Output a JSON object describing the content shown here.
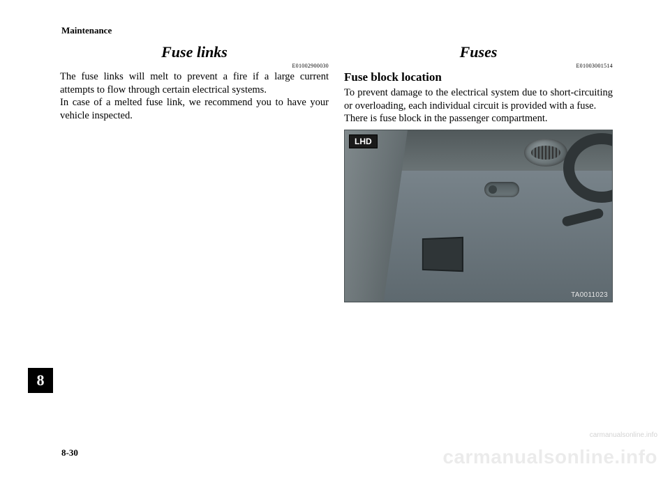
{
  "page": {
    "header": "Maintenance",
    "chapter_tab": "8",
    "page_number": "8-30",
    "watermark_large": "carmanualsonline.info",
    "watermark_small": "carmanualsonline.info"
  },
  "left": {
    "title": "Fuse links",
    "code": "E01002900030",
    "paragraphs": [
      "The fuse links will melt to prevent a fire if a large current attempts to flow through certain electrical systems.",
      "In case of a melted fuse link, we recommend you to have your vehicle inspected."
    ]
  },
  "right": {
    "title": "Fuses",
    "code": "E01003001514",
    "subheading": "Fuse block location",
    "paragraphs": [
      "To prevent damage to the electrical system due to short-circuiting or overloading, each individual circuit is provided with a fuse.",
      "There is fuse block in the passenger compartment."
    ],
    "photo": {
      "label": "LHD",
      "ref": "TA0011023",
      "description": "dashboard-fuse-block-location",
      "colors": {
        "bg_gradient": [
          "#5f6a6d",
          "#7b8689",
          "#8e999c",
          "#6c7679"
        ],
        "label_bg": "#1a1a1a",
        "label_text": "#ffffff"
      }
    }
  },
  "style": {
    "page_bg": "#ffffff",
    "text_color": "#000000",
    "title_fontsize_pt": 22,
    "subhead_fontsize_pt": 17,
    "body_fontsize_pt": 14.5,
    "code_fontsize_pt": 8,
    "font_family": "Times New Roman"
  }
}
